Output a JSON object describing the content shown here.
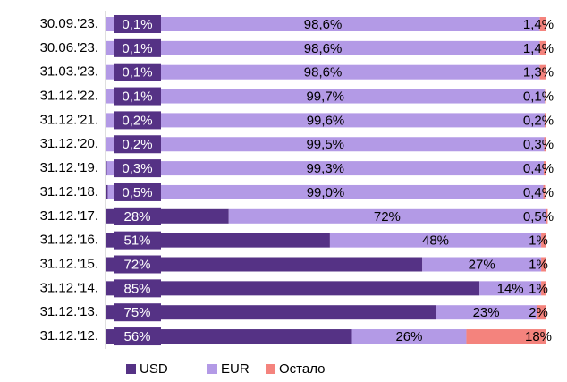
{
  "chart_data": {
    "type": "stacked-bar-horizontal",
    "categories": [
      "30.09.'23.",
      "30.06.'23.",
      "31.03.'23.",
      "31.12.'22.",
      "31.12.'21.",
      "31.12.'20.",
      "31.12.'19.",
      "31.12.'18.",
      "31.12.'17.",
      "31.12.'16.",
      "31.12.'15.",
      "31.12.'14.",
      "31.12.'13.",
      "31.12.'12."
    ],
    "xlim": [
      0,
      100
    ],
    "legend": "bottom",
    "series": [
      {
        "name": "USD",
        "color": "#553285",
        "values": [
          0.1,
          0.1,
          0.1,
          0.1,
          0.2,
          0.2,
          0.3,
          0.5,
          28,
          51,
          72,
          85,
          75,
          56
        ],
        "value_labels": [
          "0,1%",
          "0,1%",
          "0,1%",
          "0,1%",
          "0,2%",
          "0,2%",
          "0,3%",
          "0,5%",
          "28%",
          "51%",
          "72%",
          "85%",
          "75%",
          "56%"
        ]
      },
      {
        "name": "EUR",
        "color": "#b39ae6",
        "values": [
          98.6,
          98.6,
          98.6,
          99.7,
          99.6,
          99.5,
          99.3,
          99.0,
          72,
          48,
          27,
          14,
          23,
          26
        ],
        "value_labels": [
          "98,6%",
          "98,6%",
          "98,6%",
          "99,7%",
          "99,6%",
          "99,5%",
          "99,3%",
          "99,0%",
          "72%",
          "48%",
          "27%",
          "14%",
          "23%",
          "26%"
        ]
      },
      {
        "name": "Остало",
        "color": "#f4837d",
        "values": [
          1.4,
          1.4,
          1.3,
          0.1,
          0.2,
          0.3,
          0.4,
          0.4,
          0.5,
          1,
          1,
          1,
          2,
          18
        ],
        "value_labels": [
          "1,4%",
          "1,4%",
          "1,3%",
          "0,1%",
          "0,2%",
          "0,3%",
          "0,4%",
          "0,4%",
          "0,5%",
          "1%",
          "1%",
          "1%",
          "2%",
          "18%"
        ]
      }
    ]
  }
}
